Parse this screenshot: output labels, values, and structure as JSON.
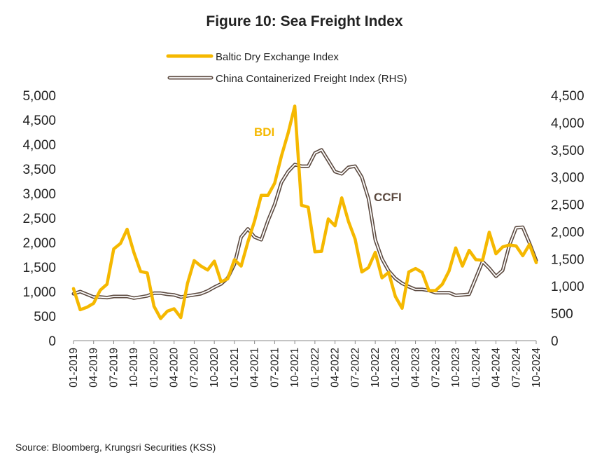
{
  "colors": {
    "bdi": "#F5B800",
    "ccfi_outer": "#5C4A40",
    "ccfi_inner": "#ffffff",
    "text": "#222222"
  },
  "chart_data": {
    "type": "line",
    "title": "Figure 10: Sea Freight Index",
    "xlabel": "",
    "ylabel": "",
    "source": "Source: Bloomberg, Krungsri Securities (KSS)",
    "x": [
      "01-2019",
      "02-2019",
      "03-2019",
      "04-2019",
      "05-2019",
      "06-2019",
      "07-2019",
      "08-2019",
      "09-2019",
      "10-2019",
      "11-2019",
      "12-2019",
      "01-2020",
      "02-2020",
      "03-2020",
      "04-2020",
      "05-2020",
      "06-2020",
      "07-2020",
      "08-2020",
      "09-2020",
      "10-2020",
      "11-2020",
      "12-2020",
      "01-2021",
      "02-2021",
      "03-2021",
      "04-2021",
      "05-2021",
      "06-2021",
      "07-2021",
      "08-2021",
      "09-2021",
      "10-2021",
      "11-2021",
      "12-2021",
      "01-2022",
      "02-2022",
      "03-2022",
      "04-2022",
      "05-2022",
      "06-2022",
      "07-2022",
      "08-2022",
      "09-2022",
      "10-2022",
      "11-2022",
      "12-2022",
      "01-2023",
      "02-2023",
      "03-2023",
      "04-2023",
      "05-2023",
      "06-2023",
      "07-2023",
      "08-2023",
      "09-2023",
      "10-2023",
      "11-2023",
      "12-2023",
      "01-2024",
      "02-2024",
      "03-2024",
      "04-2024",
      "05-2024",
      "06-2024",
      "07-2024",
      "08-2024",
      "09-2024",
      "10-2024"
    ],
    "x_tick_labels": [
      "01-2019",
      "04-2019",
      "07-2019",
      "10-2019",
      "01-2020",
      "04-2020",
      "07-2020",
      "10-2020",
      "01-2021",
      "04-2021",
      "07-2021",
      "10-2021",
      "01-2022",
      "04-2022",
      "07-2022",
      "10-2022",
      "01-2023",
      "04-2023",
      "07-2023",
      "10-2023",
      "01-2024",
      "04-2024",
      "07-2024",
      "10-2024"
    ],
    "x_tick_every": 3,
    "y_left": {
      "lim": [
        0,
        5000
      ],
      "ticks": [
        0,
        500,
        1000,
        1500,
        2000,
        2500,
        3000,
        3500,
        4000,
        4500,
        5000
      ],
      "tick_labels": [
        "0",
        "500",
        "1,000",
        "1,500",
        "2,000",
        "2,500",
        "3,000",
        "3,500",
        "4,000",
        "4,500",
        "5,000"
      ]
    },
    "y_right": {
      "lim": [
        0,
        4500
      ],
      "ticks": [
        0,
        500,
        1000,
        1500,
        2000,
        2500,
        3000,
        3500,
        4000,
        4500
      ],
      "tick_labels": [
        "0",
        "500",
        "1,000",
        "1,500",
        "2,000",
        "2,500",
        "3,000",
        "3,500",
        "4,000",
        "4,500"
      ]
    },
    "legend": {
      "position": "top-center"
    },
    "grid": false,
    "series": [
      {
        "name": "Baltic Dry Exchange Index",
        "axis": "left",
        "style": "solid",
        "values": [
          1060,
          630,
          680,
          760,
          1030,
          1150,
          1870,
          1980,
          2270,
          1800,
          1410,
          1380,
          700,
          450,
          600,
          650,
          470,
          1170,
          1630,
          1520,
          1440,
          1620,
          1200,
          1260,
          1650,
          1520,
          2010,
          2440,
          2960,
          2960,
          3210,
          3760,
          4230,
          4780,
          2760,
          2720,
          1810,
          1820,
          2480,
          2340,
          2910,
          2430,
          2070,
          1400,
          1490,
          1800,
          1280,
          1390,
          900,
          660,
          1400,
          1470,
          1390,
          1020,
          1020,
          1150,
          1420,
          1890,
          1520,
          1840,
          1650,
          1640,
          2210,
          1770,
          1910,
          1950,
          1930,
          1730,
          1960,
          1590
        ]
      },
      {
        "name": "China Containerized Freight Index (RHS)",
        "axis": "right",
        "style": "double",
        "values": [
          860,
          900,
          850,
          800,
          800,
          790,
          810,
          810,
          810,
          780,
          800,
          820,
          870,
          870,
          850,
          840,
          800,
          820,
          840,
          860,
          910,
          980,
          1040,
          1150,
          1400,
          1900,
          2050,
          1900,
          1850,
          2200,
          2500,
          2900,
          3100,
          3230,
          3200,
          3200,
          3440,
          3500,
          3300,
          3100,
          3060,
          3180,
          3200,
          3000,
          2600,
          1850,
          1500,
          1280,
          1140,
          1050,
          990,
          940,
          940,
          920,
          880,
          880,
          880,
          830,
          840,
          850,
          1150,
          1450,
          1330,
          1180,
          1290,
          1750,
          2070,
          2080,
          1790,
          1470
        ]
      }
    ],
    "annotations": [
      {
        "text": "BDI",
        "series": 0
      },
      {
        "text": "CCFI",
        "series": 1
      }
    ]
  }
}
